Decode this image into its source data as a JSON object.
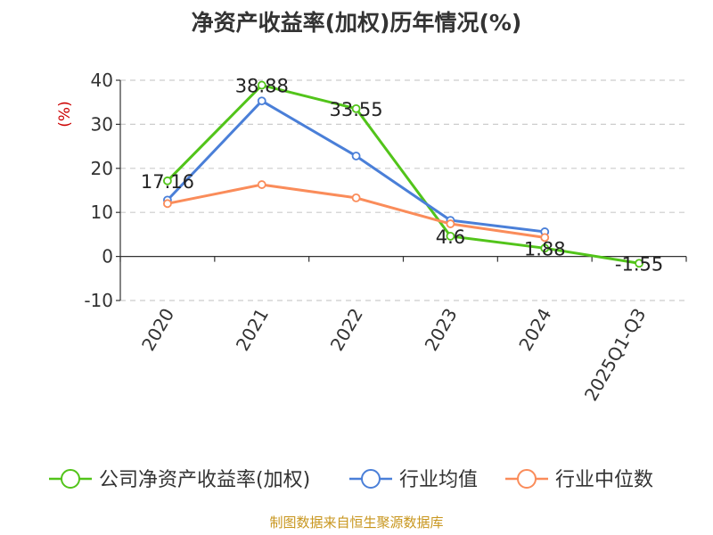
{
  "chart_data": {
    "type": "line",
    "title": "净资产收益率(加权)历年情况(%)",
    "ylabel": "(%)",
    "xlabel": "",
    "categories": [
      "2020",
      "2021",
      "2022",
      "2023",
      "2024",
      "2025Q1-Q3"
    ],
    "ylim": [
      -10,
      40
    ],
    "yticks": [
      -10,
      0,
      10,
      20,
      30,
      40
    ],
    "grid": true,
    "legend_position": "bottom",
    "series": [
      {
        "name": "公司净资产收益率(加权)",
        "color": "#52c41a",
        "values": [
          17.16,
          38.88,
          33.55,
          4.6,
          1.88,
          -1.55
        ],
        "labels": [
          "17.16",
          "38.88",
          "33.55",
          "4.6",
          "1.88",
          "-1.55"
        ]
      },
      {
        "name": "行业均值",
        "color": "#4a7fd8",
        "values": [
          12.8,
          35.3,
          22.8,
          8.2,
          5.6,
          null
        ]
      },
      {
        "name": "行业中位数",
        "color": "#fa8c5a",
        "values": [
          12.0,
          16.3,
          13.3,
          7.4,
          4.3,
          null
        ]
      }
    ]
  },
  "footer": {
    "source": "制图数据来自恒生聚源数据库"
  }
}
